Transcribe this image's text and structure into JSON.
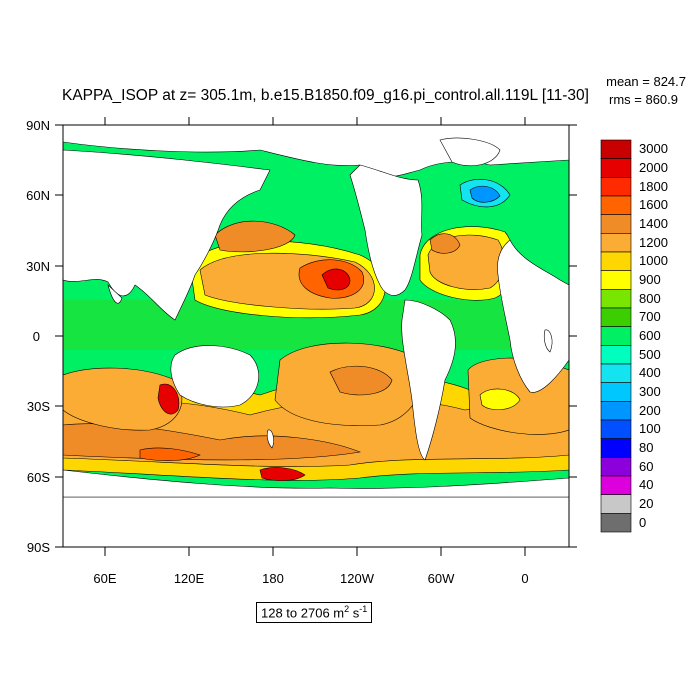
{
  "title": "KAPPA_ISOP at z= 305.1m, b.e15.B1850.f09_g16.pi_control.all.119L [11-30]",
  "stats": {
    "mean": "mean = 824.7",
    "rms": "rms = 860.9"
  },
  "axes": {
    "lat_ticks": [
      "90N",
      "60N",
      "30N",
      "0",
      "30S",
      "60S",
      "90S"
    ],
    "lon_ticks": [
      "60E",
      "120E",
      "180",
      "120W",
      "60W",
      "0"
    ]
  },
  "colorbar": {
    "levels": [
      "3000",
      "2000",
      "1800",
      "1600",
      "1400",
      "1200",
      "1000",
      "900",
      "800",
      "700",
      "600",
      "500",
      "400",
      "300",
      "200",
      "100",
      "80",
      "60",
      "40",
      "20",
      "0"
    ],
    "colors": [
      "#c80000",
      "#e60000",
      "#ff2a00",
      "#ff6400",
      "#f08c28",
      "#fbac35",
      "#ffd700",
      "#ffff00",
      "#78e600",
      "#3ccf00",
      "#00f064",
      "#00ffbe",
      "#14e4f0",
      "#00c8ff",
      "#0096ff",
      "#0050ff",
      "#0000ff",
      "#8c00dc",
      "#dc00dc",
      "#c8c8c8",
      "#6e6e6e"
    ]
  },
  "range": {
    "text": "128 to 2706 m",
    "sup1": "2",
    "mid": " s",
    "sup2": "-1"
  }
}
